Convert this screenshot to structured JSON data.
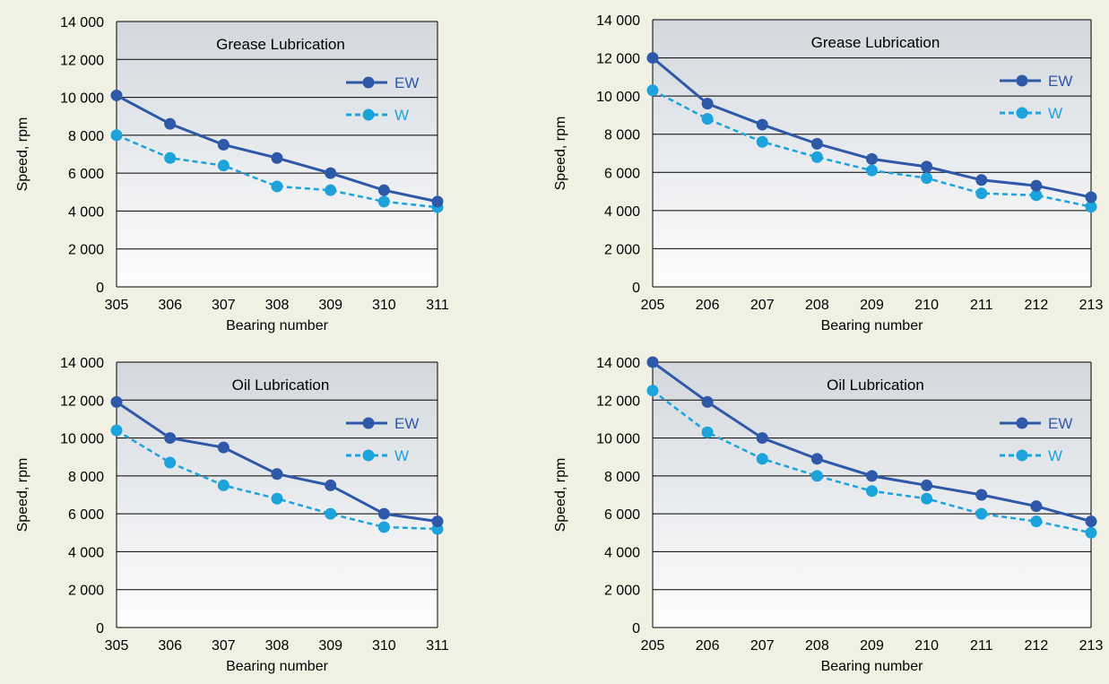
{
  "colors": {
    "background": "#f0f1e2",
    "ew": "#2e59a8",
    "w": "#1ca3dc",
    "grid": "#000000",
    "band_top": "#d3d8de",
    "band_bottom": "#fdfdfd"
  },
  "chart_data": [
    {
      "type": "line",
      "title": "Grease Lubrication",
      "xlabel": "Bearing number",
      "ylabel": "Speed, rpm",
      "categories": [
        "305",
        "306",
        "307",
        "308",
        "309",
        "310",
        "311"
      ],
      "ylim": [
        0,
        14000
      ],
      "yticks": [
        "0",
        "2 000",
        "4 000",
        "6 000",
        "8 000",
        "10 000",
        "12 000",
        "14 000"
      ],
      "grid": true,
      "legend": "top-right",
      "series": [
        {
          "name": "EW",
          "style": "solid",
          "values": [
            10100,
            8600,
            7500,
            6800,
            6000,
            5100,
            4500
          ]
        },
        {
          "name": "W",
          "style": "dashed",
          "values": [
            8000,
            6800,
            6400,
            5300,
            5100,
            4500,
            4200
          ]
        }
      ]
    },
    {
      "type": "line",
      "title": "Grease Lubrication",
      "xlabel": "Bearing number",
      "ylabel": "Speed, rpm",
      "categories": [
        "205",
        "206",
        "207",
        "208",
        "209",
        "210",
        "211",
        "212",
        "213"
      ],
      "ylim": [
        0,
        14000
      ],
      "yticks": [
        "0",
        "2 000",
        "4 000",
        "6 000",
        "8 000",
        "10 000",
        "12 000",
        "14 000"
      ],
      "grid": true,
      "legend": "top-right",
      "series": [
        {
          "name": "EW",
          "style": "solid",
          "values": [
            12000,
            9600,
            8500,
            7500,
            6700,
            6300,
            5600,
            5300,
            4700
          ]
        },
        {
          "name": "W",
          "style": "dashed",
          "values": [
            10300,
            8800,
            7600,
            6800,
            6100,
            5700,
            4900,
            4800,
            4200
          ]
        }
      ]
    },
    {
      "type": "line",
      "title": "Oil Lubrication",
      "xlabel": "Bearing number",
      "ylabel": "Speed, rpm",
      "categories": [
        "305",
        "306",
        "307",
        "308",
        "309",
        "310",
        "311"
      ],
      "ylim": [
        0,
        14000
      ],
      "yticks": [
        "0",
        "2 000",
        "4 000",
        "6 000",
        "8 000",
        "10 000",
        "12 000",
        "14 000"
      ],
      "grid": true,
      "legend": "top-right",
      "series": [
        {
          "name": "EW",
          "style": "solid",
          "values": [
            11900,
            10000,
            9500,
            8100,
            7500,
            6000,
            5600
          ]
        },
        {
          "name": "W",
          "style": "dashed",
          "values": [
            10400,
            8700,
            7500,
            6800,
            6000,
            5300,
            5200
          ]
        }
      ]
    },
    {
      "type": "line",
      "title": "Oil Lubrication",
      "xlabel": "Bearing number",
      "ylabel": "Speed, rpm",
      "categories": [
        "205",
        "206",
        "207",
        "208",
        "209",
        "210",
        "211",
        "212",
        "213"
      ],
      "ylim": [
        0,
        14000
      ],
      "yticks": [
        "0",
        "2 000",
        "4 000",
        "6 000",
        "8 000",
        "10 000",
        "12 000",
        "14 000"
      ],
      "grid": true,
      "legend": "top-right",
      "series": [
        {
          "name": "EW",
          "style": "solid",
          "values": [
            14000,
            11900,
            10000,
            8900,
            8000,
            7500,
            7000,
            6400,
            5600
          ]
        },
        {
          "name": "W",
          "style": "dashed",
          "values": [
            12500,
            10300,
            8900,
            8000,
            7200,
            6800,
            6000,
            5600,
            5000
          ]
        }
      ]
    }
  ]
}
